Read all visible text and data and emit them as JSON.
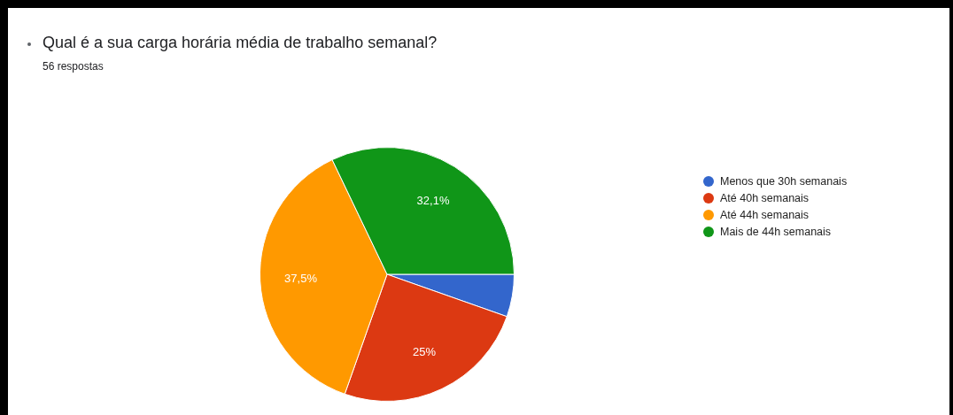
{
  "chart_data": {
    "type": "pie",
    "title": "Qual é a sua carga horária média de trabalho semanal?",
    "subtitle": "56 respostas",
    "categories": [
      "Menos que 30h semanais",
      "Até 40h semanais",
      "Até 44h semanais",
      "Mais de 44h semanais"
    ],
    "values": [
      5.4,
      25,
      37.5,
      32.1
    ],
    "colors": [
      "#3366cc",
      "#dc3912",
      "#ff9900",
      "#109618"
    ],
    "value_labels": [
      null,
      "25%",
      "37,5%",
      "32,1%"
    ],
    "legend": "right"
  }
}
